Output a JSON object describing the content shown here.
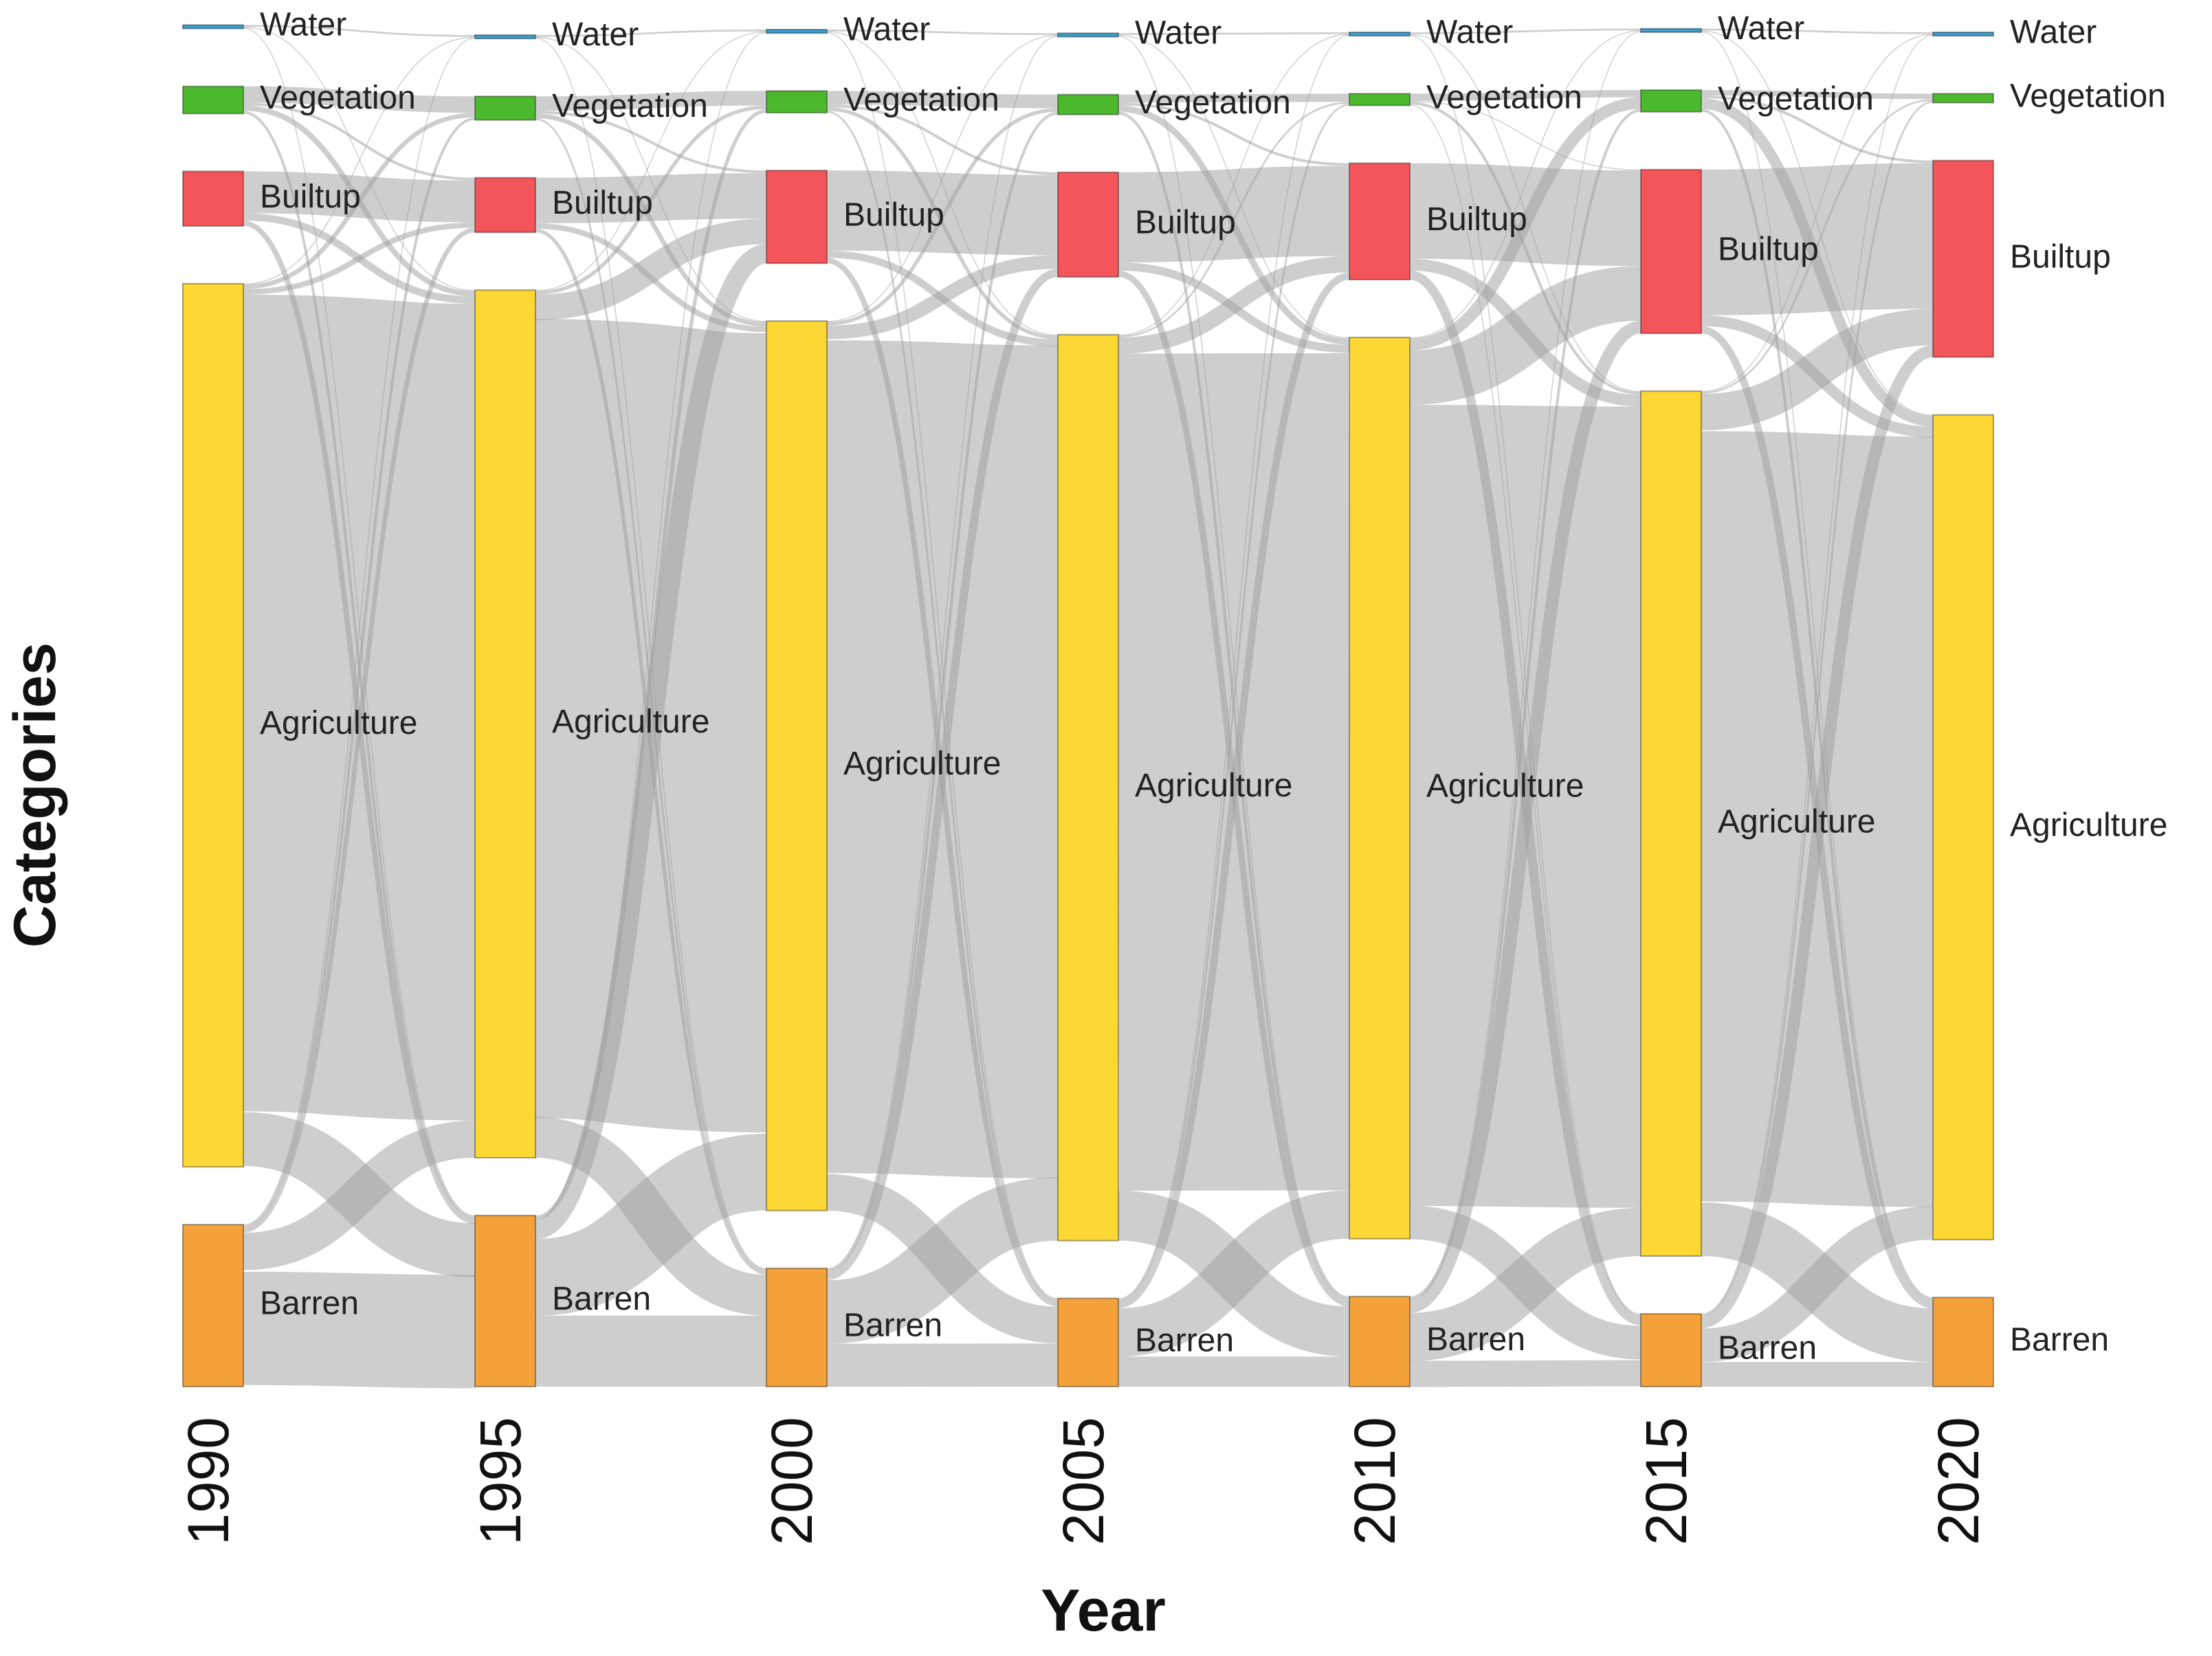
{
  "chart_data": {
    "type": "sankey",
    "xlabel": "Year",
    "ylabel": "Categories",
    "years": [
      "1990",
      "1995",
      "2000",
      "2005",
      "2010",
      "2015",
      "2020"
    ],
    "categories": [
      "Water",
      "Vegetation",
      "Builtup",
      "Agriculture",
      "Barren"
    ],
    "colors": {
      "Water": "#3a9fd0",
      "Vegetation": "#4cb82e",
      "Builtup": "#f4555a",
      "Agriculture": "#fdd835",
      "Barren": "#f4a13a",
      "flow": "#9e9e9e"
    },
    "values": [
      {
        "Water": 0.4,
        "Vegetation": 3.0,
        "Builtup": 6.0,
        "Agriculture": 97.0,
        "Barren": 17.8
      },
      {
        "Water": 0.4,
        "Vegetation": 2.6,
        "Builtup": 6.0,
        "Agriculture": 95.3,
        "Barren": 18.8
      },
      {
        "Water": 0.4,
        "Vegetation": 2.4,
        "Builtup": 10.2,
        "Agriculture": 97.7,
        "Barren": 13.0
      },
      {
        "Water": 0.4,
        "Vegetation": 2.2,
        "Builtup": 11.5,
        "Agriculture": 99.5,
        "Barren": 9.7
      },
      {
        "Water": 0.4,
        "Vegetation": 1.3,
        "Builtup": 12.8,
        "Agriculture": 99.0,
        "Barren": 9.9
      },
      {
        "Water": 0.4,
        "Vegetation": 2.4,
        "Builtup": 18.0,
        "Agriculture": 95.0,
        "Barren": 8.0
      },
      {
        "Water": 0.4,
        "Vegetation": 1.0,
        "Builtup": 21.6,
        "Agriculture": 90.6,
        "Barren": 9.8
      }
    ],
    "flows": [
      [
        {
          "from": "Water",
          "to": "Water",
          "value": 0.2
        },
        {
          "from": "Water",
          "to": "Agriculture",
          "value": 0.1
        },
        {
          "from": "Water",
          "to": "Barren",
          "value": 0.1
        },
        {
          "from": "Vegetation",
          "to": "Vegetation",
          "value": 1.8
        },
        {
          "from": "Vegetation",
          "to": "Agriculture",
          "value": 0.6
        },
        {
          "from": "Vegetation",
          "to": "Builtup",
          "value": 0.3
        },
        {
          "from": "Vegetation",
          "to": "Barren",
          "value": 0.3
        },
        {
          "from": "Builtup",
          "to": "Builtup",
          "value": 4.6
        },
        {
          "from": "Builtup",
          "to": "Agriculture",
          "value": 0.8
        },
        {
          "from": "Builtup",
          "to": "Barren",
          "value": 0.6
        },
        {
          "from": "Agriculture",
          "to": "Water",
          "value": 0.1
        },
        {
          "from": "Agriculture",
          "to": "Vegetation",
          "value": 0.5
        },
        {
          "from": "Agriculture",
          "to": "Builtup",
          "value": 0.6
        },
        {
          "from": "Agriculture",
          "to": "Agriculture",
          "value": 89.7
        },
        {
          "from": "Agriculture",
          "to": "Barren",
          "value": 6.1
        },
        {
          "from": "Barren",
          "to": "Water",
          "value": 0.1
        },
        {
          "from": "Barren",
          "to": "Vegetation",
          "value": 0.3
        },
        {
          "from": "Barren",
          "to": "Builtup",
          "value": 0.5
        },
        {
          "from": "Barren",
          "to": "Agriculture",
          "value": 4.1
        },
        {
          "from": "Barren",
          "to": "Barren",
          "value": 12.8
        }
      ],
      [
        {
          "from": "Water",
          "to": "Water",
          "value": 0.2
        },
        {
          "from": "Water",
          "to": "Agriculture",
          "value": 0.1
        },
        {
          "from": "Water",
          "to": "Barren",
          "value": 0.1
        },
        {
          "from": "Vegetation",
          "to": "Vegetation",
          "value": 1.6
        },
        {
          "from": "Vegetation",
          "to": "Agriculture",
          "value": 0.5
        },
        {
          "from": "Vegetation",
          "to": "Builtup",
          "value": 0.3
        },
        {
          "from": "Vegetation",
          "to": "Barren",
          "value": 0.2
        },
        {
          "from": "Builtup",
          "to": "Builtup",
          "value": 5.0
        },
        {
          "from": "Builtup",
          "to": "Agriculture",
          "value": 0.6
        },
        {
          "from": "Builtup",
          "to": "Barren",
          "value": 0.4
        },
        {
          "from": "Agriculture",
          "to": "Water",
          "value": 0.1
        },
        {
          "from": "Agriculture",
          "to": "Vegetation",
          "value": 0.4
        },
        {
          "from": "Agriculture",
          "to": "Builtup",
          "value": 2.8
        },
        {
          "from": "Agriculture",
          "to": "Agriculture",
          "value": 87.5
        },
        {
          "from": "Agriculture",
          "to": "Barren",
          "value": 4.5
        },
        {
          "from": "Barren",
          "to": "Water",
          "value": 0.1
        },
        {
          "from": "Barren",
          "to": "Vegetation",
          "value": 0.4
        },
        {
          "from": "Barren",
          "to": "Builtup",
          "value": 2.1
        },
        {
          "from": "Barren",
          "to": "Agriculture",
          "value": 8.4
        },
        {
          "from": "Barren",
          "to": "Barren",
          "value": 7.8
        }
      ],
      [
        {
          "from": "Water",
          "to": "Water",
          "value": 0.2
        },
        {
          "from": "Water",
          "to": "Agriculture",
          "value": 0.1
        },
        {
          "from": "Water",
          "to": "Barren",
          "value": 0.1
        },
        {
          "from": "Vegetation",
          "to": "Vegetation",
          "value": 1.5
        },
        {
          "from": "Vegetation",
          "to": "Agriculture",
          "value": 0.4
        },
        {
          "from": "Vegetation",
          "to": "Builtup",
          "value": 0.3
        },
        {
          "from": "Vegetation",
          "to": "Barren",
          "value": 0.2
        },
        {
          "from": "Builtup",
          "to": "Builtup",
          "value": 8.8
        },
        {
          "from": "Builtup",
          "to": "Agriculture",
          "value": 0.8
        },
        {
          "from": "Builtup",
          "to": "Barren",
          "value": 0.6
        },
        {
          "from": "Agriculture",
          "to": "Water",
          "value": 0.1
        },
        {
          "from": "Agriculture",
          "to": "Vegetation",
          "value": 0.4
        },
        {
          "from": "Agriculture",
          "to": "Builtup",
          "value": 1.5
        },
        {
          "from": "Agriculture",
          "to": "Agriculture",
          "value": 91.7
        },
        {
          "from": "Agriculture",
          "to": "Barren",
          "value": 4.0
        },
        {
          "from": "Barren",
          "to": "Water",
          "value": 0.1
        },
        {
          "from": "Barren",
          "to": "Vegetation",
          "value": 0.3
        },
        {
          "from": "Barren",
          "to": "Builtup",
          "value": 0.9
        },
        {
          "from": "Barren",
          "to": "Agriculture",
          "value": 7.0
        },
        {
          "from": "Barren",
          "to": "Barren",
          "value": 4.7
        }
      ],
      [
        {
          "from": "Water",
          "to": "Water",
          "value": 0.2
        },
        {
          "from": "Water",
          "to": "Agriculture",
          "value": 0.1
        },
        {
          "from": "Water",
          "to": "Barren",
          "value": 0.1
        },
        {
          "from": "Vegetation",
          "to": "Vegetation",
          "value": 0.9
        },
        {
          "from": "Vegetation",
          "to": "Agriculture",
          "value": 0.7
        },
        {
          "from": "Vegetation",
          "to": "Builtup",
          "value": 0.3
        },
        {
          "from": "Vegetation",
          "to": "Barren",
          "value": 0.3
        },
        {
          "from": "Builtup",
          "to": "Builtup",
          "value": 9.9
        },
        {
          "from": "Builtup",
          "to": "Agriculture",
          "value": 0.9
        },
        {
          "from": "Builtup",
          "to": "Barren",
          "value": 0.7
        },
        {
          "from": "Agriculture",
          "to": "Water",
          "value": 0.1
        },
        {
          "from": "Agriculture",
          "to": "Vegetation",
          "value": 0.2
        },
        {
          "from": "Agriculture",
          "to": "Builtup",
          "value": 1.8
        },
        {
          "from": "Agriculture",
          "to": "Agriculture",
          "value": 91.9
        },
        {
          "from": "Agriculture",
          "to": "Barren",
          "value": 5.5
        },
        {
          "from": "Barren",
          "to": "Water",
          "value": 0.1
        },
        {
          "from": "Barren",
          "to": "Vegetation",
          "value": 0.2
        },
        {
          "from": "Barren",
          "to": "Builtup",
          "value": 0.8
        },
        {
          "from": "Barren",
          "to": "Agriculture",
          "value": 5.3
        },
        {
          "from": "Barren",
          "to": "Barren",
          "value": 3.3
        }
      ],
      [
        {
          "from": "Water",
          "to": "Water",
          "value": 0.2
        },
        {
          "from": "Water",
          "to": "Agriculture",
          "value": 0.1
        },
        {
          "from": "Water",
          "to": "Barren",
          "value": 0.1
        },
        {
          "from": "Vegetation",
          "to": "Vegetation",
          "value": 0.8
        },
        {
          "from": "Vegetation",
          "to": "Agriculture",
          "value": 0.3
        },
        {
          "from": "Vegetation",
          "to": "Builtup",
          "value": 0.1
        },
        {
          "from": "Vegetation",
          "to": "Barren",
          "value": 0.1
        },
        {
          "from": "Builtup",
          "to": "Builtup",
          "value": 10.5
        },
        {
          "from": "Builtup",
          "to": "Agriculture",
          "value": 1.3
        },
        {
          "from": "Builtup",
          "to": "Barren",
          "value": 1.0
        },
        {
          "from": "Agriculture",
          "to": "Water",
          "value": 0.1
        },
        {
          "from": "Agriculture",
          "to": "Vegetation",
          "value": 1.3
        },
        {
          "from": "Agriculture",
          "to": "Builtup",
          "value": 6.0
        },
        {
          "from": "Agriculture",
          "to": "Agriculture",
          "value": 88.0
        },
        {
          "from": "Agriculture",
          "to": "Barren",
          "value": 3.6
        },
        {
          "from": "Barren",
          "to": "Water",
          "value": 0.1
        },
        {
          "from": "Barren",
          "to": "Vegetation",
          "value": 0.3
        },
        {
          "from": "Barren",
          "to": "Builtup",
          "value": 1.4
        },
        {
          "from": "Barren",
          "to": "Agriculture",
          "value": 5.3
        },
        {
          "from": "Barren",
          "to": "Barren",
          "value": 2.8
        }
      ],
      [
        {
          "from": "Water",
          "to": "Water",
          "value": 0.2
        },
        {
          "from": "Water",
          "to": "Agriculture",
          "value": 0.1
        },
        {
          "from": "Water",
          "to": "Barren",
          "value": 0.1
        },
        {
          "from": "Vegetation",
          "to": "Vegetation",
          "value": 0.6
        },
        {
          "from": "Vegetation",
          "to": "Agriculture",
          "value": 1.2
        },
        {
          "from": "Vegetation",
          "to": "Builtup",
          "value": 0.3
        },
        {
          "from": "Vegetation",
          "to": "Barren",
          "value": 0.3
        },
        {
          "from": "Builtup",
          "to": "Builtup",
          "value": 16.0
        },
        {
          "from": "Builtup",
          "to": "Agriculture",
          "value": 1.2
        },
        {
          "from": "Builtup",
          "to": "Barren",
          "value": 0.8
        },
        {
          "from": "Agriculture",
          "to": "Water",
          "value": 0.1
        },
        {
          "from": "Agriculture",
          "to": "Vegetation",
          "value": 0.2
        },
        {
          "from": "Agriculture",
          "to": "Builtup",
          "value": 4.0
        },
        {
          "from": "Agriculture",
          "to": "Agriculture",
          "value": 84.8
        },
        {
          "from": "Agriculture",
          "to": "Barren",
          "value": 5.9
        },
        {
          "from": "Barren",
          "to": "Water",
          "value": 0.1
        },
        {
          "from": "Barren",
          "to": "Vegetation",
          "value": 0.2
        },
        {
          "from": "Barren",
          "to": "Builtup",
          "value": 1.3
        },
        {
          "from": "Barren",
          "to": "Agriculture",
          "value": 3.7
        },
        {
          "from": "Barren",
          "to": "Barren",
          "value": 2.7
        }
      ]
    ]
  }
}
